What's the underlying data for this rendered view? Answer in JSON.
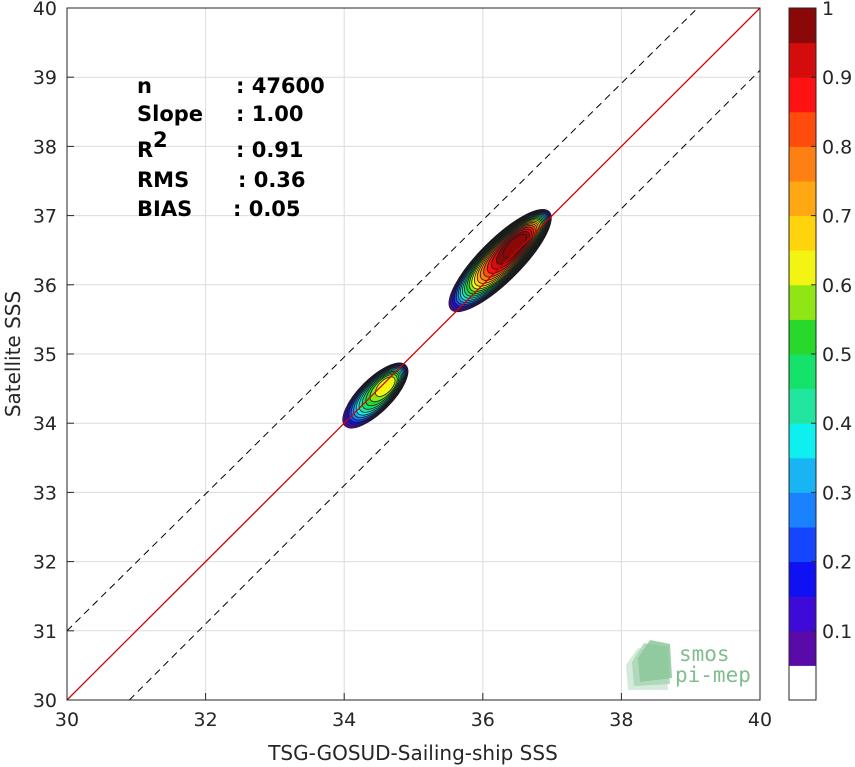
{
  "chart_data": {
    "type": "heatmap",
    "xlabel": "TSG-GOSUD-Sailing-ship SSS",
    "ylabel": "Satellite SSS",
    "xlim": [
      30,
      40
    ],
    "ylim": [
      30,
      40
    ],
    "x_ticks": [
      "30",
      "32",
      "34",
      "36",
      "38",
      "40"
    ],
    "y_ticks": [
      "30",
      "31",
      "32",
      "33",
      "34",
      "35",
      "36",
      "37",
      "38",
      "39",
      "40"
    ],
    "grid": true,
    "stats": [
      {
        "label": "n",
        "value": ": 47600"
      },
      {
        "label": "Slope",
        "value": ": 1.00"
      },
      {
        "label": "R",
        "sup": "2",
        "value": ": 0.91"
      },
      {
        "label": "RMS",
        "value": ": 0.36"
      },
      {
        "label": "BIAS",
        "value": ": 0.05"
      }
    ],
    "reference_lines": [
      {
        "kind": "identity",
        "x": [
          30,
          40
        ],
        "y": [
          30,
          40
        ],
        "color": "#000000",
        "style": "solid"
      },
      {
        "kind": "regression",
        "slope": 1.0,
        "color": "#dd0000",
        "style": "solid"
      },
      {
        "kind": "upper-bound",
        "x": [
          30,
          39.1
        ],
        "y": [
          31,
          40
        ],
        "color": "#000000",
        "style": "dashed"
      },
      {
        "kind": "lower-bound",
        "x": [
          30.9,
          40
        ],
        "y": [
          30,
          39.1
        ],
        "color": "#000000",
        "style": "dashed"
      }
    ],
    "clusters": [
      {
        "center": [
          34.45,
          34.4
        ],
        "a": 0.62,
        "b": 0.2,
        "peak": 0.6,
        "hotspot": [
          34.65,
          34.58
        ]
      },
      {
        "center": [
          36.25,
          36.35
        ],
        "a": 1.0,
        "b": 0.26,
        "peak": 1.0,
        "hotspot": [
          36.52,
          36.62
        ]
      }
    ],
    "colorbar": {
      "range": [
        0,
        1
      ],
      "ticks": [
        "0.1",
        "0.2",
        "0.3",
        "0.4",
        "0.5",
        "0.6",
        "0.7",
        "0.8",
        "0.9",
        "1"
      ],
      "tick_values": [
        0.1,
        0.2,
        0.3,
        0.4,
        0.5,
        0.6,
        0.7,
        0.8,
        0.9,
        1.0
      ],
      "levels": [
        {
          "from": 0.0,
          "to": 0.05,
          "color": "#ffffff"
        },
        {
          "from": 0.05,
          "to": 0.1,
          "color": "#5a0aa8"
        },
        {
          "from": 0.1,
          "to": 0.15,
          "color": "#3d0ad8"
        },
        {
          "from": 0.15,
          "to": 0.2,
          "color": "#1010f4"
        },
        {
          "from": 0.2,
          "to": 0.25,
          "color": "#1446ff"
        },
        {
          "from": 0.25,
          "to": 0.3,
          "color": "#1a82ff"
        },
        {
          "from": 0.3,
          "to": 0.35,
          "color": "#18b4f4"
        },
        {
          "from": 0.35,
          "to": 0.4,
          "color": "#0ef0f0"
        },
        {
          "from": 0.4,
          "to": 0.45,
          "color": "#22e6a0"
        },
        {
          "from": 0.45,
          "to": 0.5,
          "color": "#14e26a"
        },
        {
          "from": 0.5,
          "to": 0.55,
          "color": "#28d82a"
        },
        {
          "from": 0.55,
          "to": 0.6,
          "color": "#90e614"
        },
        {
          "from": 0.6,
          "to": 0.65,
          "color": "#f4f412"
        },
        {
          "from": 0.65,
          "to": 0.7,
          "color": "#ffd40c"
        },
        {
          "from": 0.7,
          "to": 0.75,
          "color": "#ffa814"
        },
        {
          "from": 0.75,
          "to": 0.8,
          "color": "#ff8012"
        },
        {
          "from": 0.8,
          "to": 0.85,
          "color": "#ff4c0c"
        },
        {
          "from": 0.85,
          "to": 0.9,
          "color": "#ff1212"
        },
        {
          "from": 0.9,
          "to": 0.95,
          "color": "#d40c0c"
        },
        {
          "from": 0.95,
          "to": 1.0,
          "color": "#8a0808"
        }
      ]
    }
  },
  "logo": {
    "line1": "smos",
    "line2": "pi-mep",
    "color": "#7fbf8f"
  }
}
